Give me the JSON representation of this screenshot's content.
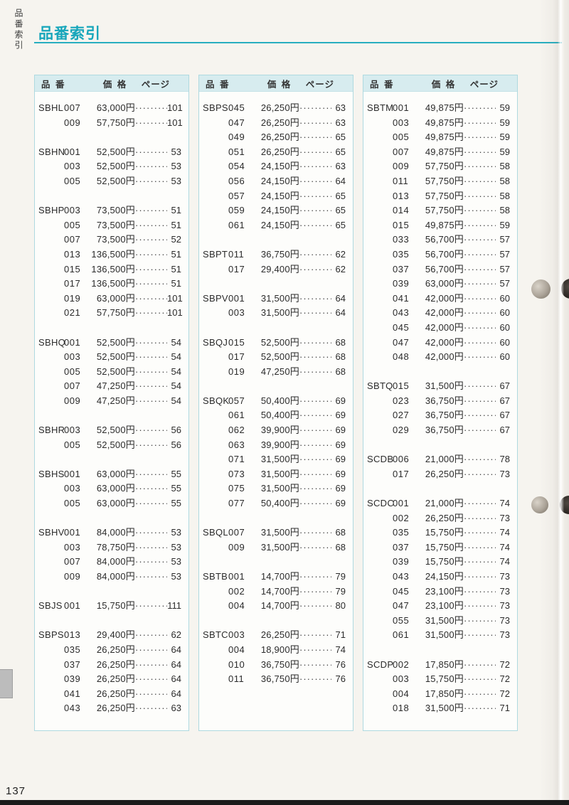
{
  "header": {
    "title": "品番索引",
    "side_label": "品番索引"
  },
  "table_headers": {
    "part": "品 番",
    "price": "価 格",
    "page": "ページ"
  },
  "leader": "·········",
  "folio": "137",
  "colors": {
    "accent_teal": "#17a6bb",
    "header_band": "#d7ecef",
    "box_border": "#aed9e0",
    "bottom_bar": "#1b1b1b"
  },
  "columns": [
    {
      "entries": [
        [
          "SBHL",
          "007",
          "63,000円",
          "101"
        ],
        [
          "",
          "009",
          "57,750円",
          "101"
        ],
        null,
        [
          "SBHN",
          "001",
          "52,500円",
          "53"
        ],
        [
          "",
          "003",
          "52,500円",
          "53"
        ],
        [
          "",
          "005",
          "52,500円",
          "53"
        ],
        null,
        [
          "SBHP",
          "003",
          "73,500円",
          "51"
        ],
        [
          "",
          "005",
          "73,500円",
          "51"
        ],
        [
          "",
          "007",
          "73,500円",
          "52"
        ],
        [
          "",
          "013",
          "136,500円",
          "51"
        ],
        [
          "",
          "015",
          "136,500円",
          "51"
        ],
        [
          "",
          "017",
          "136,500円",
          "51"
        ],
        [
          "",
          "019",
          "63,000円",
          "101"
        ],
        [
          "",
          "021",
          "57,750円",
          "101"
        ],
        null,
        [
          "SBHQ",
          "001",
          "52,500円",
          "54"
        ],
        [
          "",
          "003",
          "52,500円",
          "54"
        ],
        [
          "",
          "005",
          "52,500円",
          "54"
        ],
        [
          "",
          "007",
          "47,250円",
          "54"
        ],
        [
          "",
          "009",
          "47,250円",
          "54"
        ],
        null,
        [
          "SBHR",
          "003",
          "52,500円",
          "56"
        ],
        [
          "",
          "005",
          "52,500円",
          "56"
        ],
        null,
        [
          "SBHS",
          "001",
          "63,000円",
          "55"
        ],
        [
          "",
          "003",
          "63,000円",
          "55"
        ],
        [
          "",
          "005",
          "63,000円",
          "55"
        ],
        null,
        [
          "SBHV",
          "001",
          "84,000円",
          "53"
        ],
        [
          "",
          "003",
          "78,750円",
          "53"
        ],
        [
          "",
          "007",
          "84,000円",
          "53"
        ],
        [
          "",
          "009",
          "84,000円",
          "53"
        ],
        null,
        [
          "SBJS",
          "001",
          "15,750円",
          "111"
        ],
        null,
        [
          "SBPS",
          "013",
          "29,400円",
          "62"
        ],
        [
          "",
          "035",
          "26,250円",
          "64"
        ],
        [
          "",
          "037",
          "26,250円",
          "64"
        ],
        [
          "",
          "039",
          "26,250円",
          "64"
        ],
        [
          "",
          "041",
          "26,250円",
          "64"
        ],
        [
          "",
          "043",
          "26,250円",
          "63"
        ]
      ]
    },
    {
      "entries": [
        [
          "SBPS",
          "045",
          "26,250円",
          "63"
        ],
        [
          "",
          "047",
          "26,250円",
          "63"
        ],
        [
          "",
          "049",
          "26,250円",
          "65"
        ],
        [
          "",
          "051",
          "26,250円",
          "65"
        ],
        [
          "",
          "054",
          "24,150円",
          "63"
        ],
        [
          "",
          "056",
          "24,150円",
          "64"
        ],
        [
          "",
          "057",
          "24,150円",
          "65"
        ],
        [
          "",
          "059",
          "24,150円",
          "65"
        ],
        [
          "",
          "061",
          "24,150円",
          "65"
        ],
        null,
        [
          "SBPT",
          "011",
          "36,750円",
          "62"
        ],
        [
          "",
          "017",
          "29,400円",
          "62"
        ],
        null,
        [
          "SBPV",
          "001",
          "31,500円",
          "64"
        ],
        [
          "",
          "003",
          "31,500円",
          "64"
        ],
        null,
        [
          "SBQJ",
          "015",
          "52,500円",
          "68"
        ],
        [
          "",
          "017",
          "52,500円",
          "68"
        ],
        [
          "",
          "019",
          "47,250円",
          "68"
        ],
        null,
        [
          "SBQK",
          "057",
          "50,400円",
          "69"
        ],
        [
          "",
          "061",
          "50,400円",
          "69"
        ],
        [
          "",
          "062",
          "39,900円",
          "69"
        ],
        [
          "",
          "063",
          "39,900円",
          "69"
        ],
        [
          "",
          "071",
          "31,500円",
          "69"
        ],
        [
          "",
          "073",
          "31,500円",
          "69"
        ],
        [
          "",
          "075",
          "31,500円",
          "69"
        ],
        [
          "",
          "077",
          "50,400円",
          "69"
        ],
        null,
        [
          "SBQL",
          "007",
          "31,500円",
          "68"
        ],
        [
          "",
          "009",
          "31,500円",
          "68"
        ],
        null,
        [
          "SBTB",
          "001",
          "14,700円",
          "79"
        ],
        [
          "",
          "002",
          "14,700円",
          "79"
        ],
        [
          "",
          "004",
          "14,700円",
          "80"
        ],
        null,
        [
          "SBTC",
          "003",
          "26,250円",
          "71"
        ],
        [
          "",
          "004",
          "18,900円",
          "74"
        ],
        [
          "",
          "010",
          "36,750円",
          "76"
        ],
        [
          "",
          "011",
          "36,750円",
          "76"
        ]
      ]
    },
    {
      "entries": [
        [
          "SBTM",
          "001",
          "49,875円",
          "59"
        ],
        [
          "",
          "003",
          "49,875円",
          "59"
        ],
        [
          "",
          "005",
          "49,875円",
          "59"
        ],
        [
          "",
          "007",
          "49,875円",
          "59"
        ],
        [
          "",
          "009",
          "57,750円",
          "58"
        ],
        [
          "",
          "011",
          "57,750円",
          "58"
        ],
        [
          "",
          "013",
          "57,750円",
          "58"
        ],
        [
          "",
          "014",
          "57,750円",
          "58"
        ],
        [
          "",
          "015",
          "49,875円",
          "59"
        ],
        [
          "",
          "033",
          "56,700円",
          "57"
        ],
        [
          "",
          "035",
          "56,700円",
          "57"
        ],
        [
          "",
          "037",
          "56,700円",
          "57"
        ],
        [
          "",
          "039",
          "63,000円",
          "57"
        ],
        [
          "",
          "041",
          "42,000円",
          "60"
        ],
        [
          "",
          "043",
          "42,000円",
          "60"
        ],
        [
          "",
          "045",
          "42,000円",
          "60"
        ],
        [
          "",
          "047",
          "42,000円",
          "60"
        ],
        [
          "",
          "048",
          "42,000円",
          "60"
        ],
        null,
        [
          "SBTQ",
          "015",
          "31,500円",
          "67"
        ],
        [
          "",
          "023",
          "36,750円",
          "67"
        ],
        [
          "",
          "027",
          "36,750円",
          "67"
        ],
        [
          "",
          "029",
          "36,750円",
          "67"
        ],
        null,
        [
          "SCDB",
          "006",
          "21,000円",
          "78"
        ],
        [
          "",
          "017",
          "26,250円",
          "73"
        ],
        null,
        [
          "SCDC",
          "001",
          "21,000円",
          "74"
        ],
        [
          "",
          "002",
          "26,250円",
          "73"
        ],
        [
          "",
          "035",
          "15,750円",
          "74"
        ],
        [
          "",
          "037",
          "15,750円",
          "74"
        ],
        [
          "",
          "039",
          "15,750円",
          "74"
        ],
        [
          "",
          "043",
          "24,150円",
          "73"
        ],
        [
          "",
          "045",
          "23,100円",
          "73"
        ],
        [
          "",
          "047",
          "23,100円",
          "73"
        ],
        [
          "",
          "055",
          "31,500円",
          "73"
        ],
        [
          "",
          "061",
          "31,500円",
          "73"
        ],
        null,
        [
          "SCDP",
          "002",
          "17,850円",
          "72"
        ],
        [
          "",
          "003",
          "15,750円",
          "72"
        ],
        [
          "",
          "004",
          "17,850円",
          "72"
        ],
        [
          "",
          "018",
          "31,500円",
          "71"
        ]
      ]
    }
  ]
}
